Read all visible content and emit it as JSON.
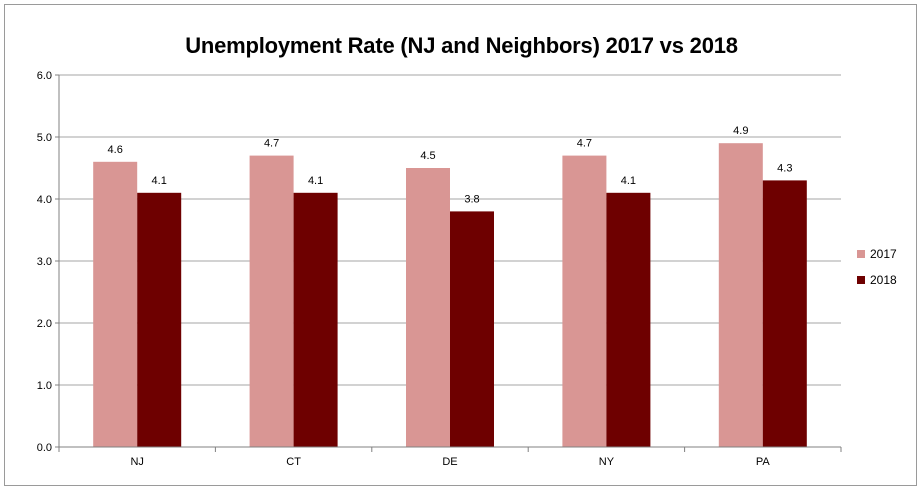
{
  "chart_data": {
    "type": "bar",
    "title": "Unemployment Rate (NJ and Neighbors) 2017 vs 2018",
    "xlabel": "",
    "ylabel": "",
    "categories": [
      "NJ",
      "CT",
      "DE",
      "NY",
      "PA"
    ],
    "series": [
      {
        "name": "2017",
        "color": "#d99694",
        "values": [
          4.6,
          4.7,
          4.5,
          4.7,
          4.9
        ]
      },
      {
        "name": "2018",
        "color": "#6e0000",
        "values": [
          4.1,
          4.1,
          3.8,
          4.1,
          4.3
        ]
      }
    ],
    "ylim": [
      0,
      6
    ],
    "yticks": [
      "0.0",
      "1.0",
      "2.0",
      "3.0",
      "4.0",
      "5.0",
      "6.0"
    ],
    "grid": true,
    "legend": "right"
  }
}
